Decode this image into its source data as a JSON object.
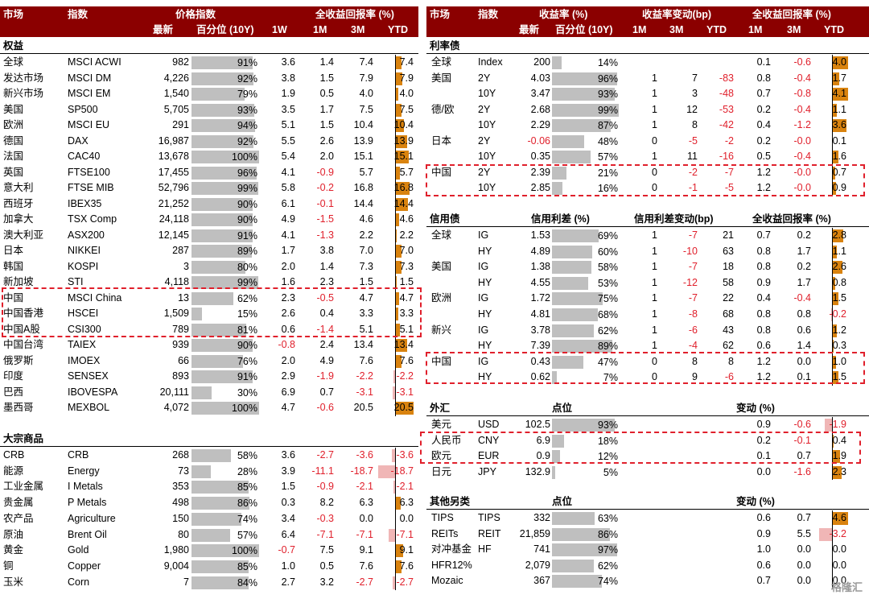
{
  "colors": {
    "header_bg": "#8b0000",
    "pct_fill": "#bfbfbf",
    "pos_bar": "#d9830f",
    "neg_bar": "#f0b6b6",
    "neg_text": "#e0202c"
  },
  "left": {
    "header": {
      "market": "市场",
      "index": "指数",
      "price_index": "价格指数",
      "total_return": "全收益回报率 (%)",
      "latest": "最新",
      "percentile": "百分位 (10Y)",
      "w1": "1W",
      "m1": "1M",
      "m3": "3M",
      "ytd": "YTD"
    },
    "equity": {
      "title": "权益",
      "rows": [
        {
          "market": "全球",
          "index": "MSCI ACWI",
          "latest": "982",
          "pct": 91,
          "pct_label": "91%",
          "w1": "3.6",
          "m1": "1.4",
          "m3": "7.4",
          "ytd": 7.4,
          "ytd_label": "7.4"
        },
        {
          "market": "发达市场",
          "index": "MSCI DM",
          "latest": "4,226",
          "pct": 92,
          "pct_label": "92%",
          "w1": "3.8",
          "m1": "1.5",
          "m3": "7.9",
          "ytd": 7.9,
          "ytd_label": "7.9"
        },
        {
          "market": "新兴市场",
          "index": "MSCI EM",
          "latest": "1,540",
          "pct": 79,
          "pct_label": "79%",
          "w1": "1.9",
          "m1": "0.5",
          "m3": "4.0",
          "ytd": 4.0,
          "ytd_label": "4.0"
        },
        {
          "market": "美国",
          "index": "SP500",
          "latest": "5,705",
          "pct": 93,
          "pct_label": "93%",
          "w1": "3.5",
          "m1": "1.7",
          "m3": "7.5",
          "ytd": 7.5,
          "ytd_label": "7.5"
        },
        {
          "market": "欧洲",
          "index": "MSCI EU",
          "latest": "291",
          "pct": 94,
          "pct_label": "94%",
          "w1": "5.1",
          "m1": "1.5",
          "m3": "10.4",
          "ytd": 10.4,
          "ytd_label": "10.4"
        },
        {
          "market": "德国",
          "index": "DAX",
          "latest": "16,987",
          "pct": 92,
          "pct_label": "92%",
          "w1": "5.5",
          "m1": "2.6",
          "m3": "13.9",
          "ytd": 13.9,
          "ytd_label": "13.9"
        },
        {
          "market": "法国",
          "index": "CAC40",
          "latest": "13,678",
          "pct": 100,
          "pct_label": "100%",
          "w1": "5.4",
          "m1": "2.0",
          "m3": "15.1",
          "ytd": 15.1,
          "ytd_label": "15.1"
        },
        {
          "market": "英国",
          "index": "FTSE100",
          "latest": "17,455",
          "pct": 96,
          "pct_label": "96%",
          "w1": "4.1",
          "m1": "-0.9",
          "m3": "5.7",
          "ytd": 5.7,
          "ytd_label": "5.7"
        },
        {
          "market": "意大利",
          "index": "FTSE MIB",
          "latest": "52,796",
          "pct": 99,
          "pct_label": "99%",
          "w1": "5.8",
          "m1": "-0.2",
          "m3": "16.8",
          "ytd": 16.8,
          "ytd_label": "16.8"
        },
        {
          "market": "西班牙",
          "index": "IBEX35",
          "latest": "21,252",
          "pct": 90,
          "pct_label": "90%",
          "w1": "6.1",
          "m1": "-0.1",
          "m3": "14.4",
          "ytd": 14.4,
          "ytd_label": "14.4"
        },
        {
          "market": "加拿大",
          "index": "TSX Comp",
          "latest": "24,118",
          "pct": 90,
          "pct_label": "90%",
          "w1": "4.9",
          "m1": "-1.5",
          "m3": "4.6",
          "ytd": 4.6,
          "ytd_label": "4.6"
        },
        {
          "market": "澳大利亚",
          "index": "ASX200",
          "latest": "12,145",
          "pct": 91,
          "pct_label": "91%",
          "w1": "4.1",
          "m1": "-1.3",
          "m3": "2.2",
          "ytd": 2.2,
          "ytd_label": "2.2"
        },
        {
          "market": "日本",
          "index": "NIKKEI",
          "latest": "287",
          "pct": 89,
          "pct_label": "89%",
          "w1": "1.7",
          "m1": "3.8",
          "m3": "7.0",
          "ytd": 7.0,
          "ytd_label": "7.0"
        },
        {
          "market": "韩国",
          "index": "KOSPI",
          "latest": "3",
          "pct": 80,
          "pct_label": "80%",
          "w1": "2.0",
          "m1": "1.4",
          "m3": "7.3",
          "ytd": 7.3,
          "ytd_label": "7.3"
        },
        {
          "market": "新加坡",
          "index": "STI",
          "latest": "4,118",
          "pct": 99,
          "pct_label": "99%",
          "w1": "1.6",
          "m1": "2.3",
          "m3": "1.5",
          "ytd": 1.5,
          "ytd_label": "1.5"
        },
        {
          "market": "中国",
          "index": "MSCI China",
          "latest": "13",
          "pct": 62,
          "pct_label": "62%",
          "w1": "2.3",
          "m1": "-0.5",
          "m3": "4.7",
          "ytd": 4.7,
          "ytd_label": "4.7"
        },
        {
          "market": "中国香港",
          "index": "HSCEI",
          "latest": "1,509",
          "pct": 15,
          "pct_label": "15%",
          "w1": "2.6",
          "m1": "0.4",
          "m3": "3.3",
          "ytd": 3.3,
          "ytd_label": "3.3"
        },
        {
          "market": "中国A股",
          "index": "CSI300",
          "latest": "789",
          "pct": 81,
          "pct_label": "81%",
          "w1": "0.6",
          "m1": "-1.4",
          "m3": "5.1",
          "ytd": 5.1,
          "ytd_label": "5.1"
        },
        {
          "market": "中国台湾",
          "index": "TAIEX",
          "latest": "939",
          "pct": 90,
          "pct_label": "90%",
          "w1": "-0.8",
          "m1": "2.4",
          "m3": "13.4",
          "ytd": 13.4,
          "ytd_label": "13.4"
        },
        {
          "market": "俄罗斯",
          "index": "IMOEX",
          "latest": "66",
          "pct": 76,
          "pct_label": "76%",
          "w1": "2.0",
          "m1": "4.9",
          "m3": "7.6",
          "ytd": 7.6,
          "ytd_label": "7.6"
        },
        {
          "market": "印度",
          "index": "SENSEX",
          "latest": "893",
          "pct": 91,
          "pct_label": "91%",
          "w1": "2.9",
          "m1": "-1.9",
          "m3": "-2.2",
          "ytd": -2.2,
          "ytd_label": "-2.2"
        },
        {
          "market": "巴西",
          "index": "IBOVESPA",
          "latest": "20,111",
          "pct": 30,
          "pct_label": "30%",
          "w1": "6.9",
          "m1": "0.7",
          "m3": "-3.1",
          "ytd": -3.1,
          "ytd_label": "-3.1"
        },
        {
          "market": "墨西哥",
          "index": "MEXBOL",
          "latest": "4,072",
          "pct": 100,
          "pct_label": "100%",
          "w1": "4.7",
          "m1": "-0.6",
          "m3": "20.5",
          "ytd": 20.5,
          "ytd_label": "20.5"
        }
      ]
    },
    "commodity": {
      "title": "大宗商品",
      "rows": [
        {
          "market": "CRB",
          "index": "CRB",
          "latest": "268",
          "pct": 58,
          "pct_label": "58%",
          "w1": "3.6",
          "m1": "-2.7",
          "m3": "-3.6",
          "ytd": -3.6,
          "ytd_label": "-3.6"
        },
        {
          "market": "能源",
          "index": "Energy",
          "latest": "73",
          "pct": 28,
          "pct_label": "28%",
          "w1": "3.9",
          "m1": "-11.1",
          "m3": "-18.7",
          "ytd": -18.7,
          "ytd_label": "-18.7"
        },
        {
          "market": "工业金属",
          "index": "I Metals",
          "latest": "353",
          "pct": 85,
          "pct_label": "85%",
          "w1": "1.5",
          "m1": "-0.9",
          "m3": "-2.1",
          "ytd": -2.1,
          "ytd_label": "-2.1"
        },
        {
          "market": "贵金属",
          "index": "P Metals",
          "latest": "498",
          "pct": 86,
          "pct_label": "86%",
          "w1": "0.3",
          "m1": "8.2",
          "m3": "6.3",
          "ytd": 6.3,
          "ytd_label": "6.3"
        },
        {
          "market": "农产品",
          "index": "Agriculture",
          "latest": "150",
          "pct": 74,
          "pct_label": "74%",
          "w1": "3.4",
          "m1": "-0.3",
          "m3": "0.0",
          "ytd": 0.0,
          "ytd_label": "0.0"
        },
        {
          "market": "原油",
          "index": "Brent Oil",
          "latest": "80",
          "pct": 57,
          "pct_label": "57%",
          "w1": "6.4",
          "m1": "-7.1",
          "m3": "-7.1",
          "ytd": -7.1,
          "ytd_label": "-7.1"
        },
        {
          "market": "黄金",
          "index": "Gold",
          "latest": "1,980",
          "pct": 100,
          "pct_label": "100%",
          "w1": "-0.7",
          "m1": "7.5",
          "m3": "9.1",
          "ytd": 9.1,
          "ytd_label": "9.1"
        },
        {
          "market": "铜",
          "index": "Copper",
          "latest": "9,004",
          "pct": 85,
          "pct_label": "85%",
          "w1": "1.0",
          "m1": "0.5",
          "m3": "7.6",
          "ytd": 7.6,
          "ytd_label": "7.6"
        },
        {
          "market": "玉米",
          "index": "Corn",
          "latest": "7",
          "pct": 84,
          "pct_label": "84%",
          "w1": "2.7",
          "m1": "3.2",
          "m3": "-2.7",
          "ytd": -2.7,
          "ytd_label": "-2.7"
        }
      ]
    }
  },
  "right": {
    "header": {
      "market": "市场",
      "index": "指数",
      "yield": "收益率 (%)",
      "yield_chg": "收益率变动(bp)",
      "total_return": "全收益回报率 (%)",
      "latest": "最新",
      "percentile": "百分位 (10Y)",
      "m1": "1M",
      "m3": "3M",
      "ytd": "YTD",
      "r_m1": "1M",
      "r_m3": "3M",
      "r_ytd": "YTD"
    },
    "rates": {
      "title": "利率债",
      "rows": [
        {
          "market": "全球",
          "index": "Index",
          "latest": "200",
          "pct": 14,
          "pct_label": "14%",
          "c1": "",
          "c2": "",
          "c3": "",
          "m1": "0.1",
          "m3": "-0.6",
          "ytd": 4.0,
          "ytd_label": "4.0"
        },
        {
          "market": "美国",
          "index": "2Y",
          "latest": "4.03",
          "pct": 96,
          "pct_label": "96%",
          "c1": "1",
          "c2": "7",
          "c3": "-83",
          "m1": "0.8",
          "m3": "-0.4",
          "ytd": 1.7,
          "ytd_label": "1.7"
        },
        {
          "market": "",
          "index": "10Y",
          "latest": "3.47",
          "pct": 93,
          "pct_label": "93%",
          "c1": "1",
          "c2": "3",
          "c3": "-48",
          "m1": "0.7",
          "m3": "-0.8",
          "ytd": 4.1,
          "ytd_label": "4.1"
        },
        {
          "market": "德/欧",
          "index": "2Y",
          "latest": "2.68",
          "pct": 99,
          "pct_label": "99%",
          "c1": "1",
          "c2": "12",
          "c3": "-53",
          "m1": "0.2",
          "m3": "-0.4",
          "ytd": 1.1,
          "ytd_label": "1.1"
        },
        {
          "market": "",
          "index": "10Y",
          "latest": "2.29",
          "pct": 87,
          "pct_label": "87%",
          "c1": "1",
          "c2": "8",
          "c3": "-42",
          "m1": "0.4",
          "m3": "-1.2",
          "ytd": 3.6,
          "ytd_label": "3.6"
        },
        {
          "market": "日本",
          "index": "2Y",
          "latest": "-0.06",
          "pct": 48,
          "pct_label": "48%",
          "c1": "0",
          "c2": "-5",
          "c3": "-2",
          "m1": "0.2",
          "m3": "-0.0",
          "ytd": 0.1,
          "ytd_label": "0.1"
        },
        {
          "market": "",
          "index": "10Y",
          "latest": "0.35",
          "pct": 57,
          "pct_label": "57%",
          "c1": "1",
          "c2": "11",
          "c3": "-16",
          "m1": "0.5",
          "m3": "-0.4",
          "ytd": 1.6,
          "ytd_label": "1.6"
        },
        {
          "market": "中国",
          "index": "2Y",
          "latest": "2.39",
          "pct": 21,
          "pct_label": "21%",
          "c1": "0",
          "c2": "-2",
          "c3": "-7",
          "m1": "1.2",
          "m3": "-0.0",
          "ytd": 0.7,
          "ytd_label": "0.7"
        },
        {
          "market": "",
          "index": "10Y",
          "latest": "2.85",
          "pct": 16,
          "pct_label": "16%",
          "c1": "0",
          "c2": "-1",
          "c3": "-5",
          "m1": "1.2",
          "m3": "-0.0",
          "ytd": 0.9,
          "ytd_label": "0.9"
        }
      ]
    },
    "credit": {
      "title": "信用债",
      "spread": "信用利差 (%)",
      "spread_chg": "信用利差变动(bp)",
      "total_return": "全收益回报率 (%)",
      "rows": [
        {
          "market": "全球",
          "index": "IG",
          "latest": "1.53",
          "pct": 69,
          "pct_label": "69%",
          "c1": "1",
          "c2": "-7",
          "c3": "21",
          "m1": "0.7",
          "m3": "0.2",
          "ytd": 2.8,
          "ytd_label": "2.8"
        },
        {
          "market": "",
          "index": "HY",
          "latest": "4.89",
          "pct": 60,
          "pct_label": "60%",
          "c1": "1",
          "c2": "-10",
          "c3": "63",
          "m1": "0.8",
          "m3": "1.7",
          "ytd": 1.1,
          "ytd_label": "1.1"
        },
        {
          "market": "美国",
          "index": "IG",
          "latest": "1.38",
          "pct": 58,
          "pct_label": "58%",
          "c1": "1",
          "c2": "-7",
          "c3": "18",
          "m1": "0.8",
          "m3": "0.2",
          "ytd": 2.6,
          "ytd_label": "2.6"
        },
        {
          "market": "",
          "index": "HY",
          "latest": "4.55",
          "pct": 53,
          "pct_label": "53%",
          "c1": "1",
          "c2": "-12",
          "c3": "58",
          "m1": "0.9",
          "m3": "1.7",
          "ytd": 0.8,
          "ytd_label": "0.8"
        },
        {
          "market": "欧洲",
          "index": "IG",
          "latest": "1.72",
          "pct": 75,
          "pct_label": "75%",
          "c1": "1",
          "c2": "-7",
          "c3": "22",
          "m1": "0.4",
          "m3": "-0.4",
          "ytd": 1.5,
          "ytd_label": "1.5"
        },
        {
          "market": "",
          "index": "HY",
          "latest": "4.81",
          "pct": 68,
          "pct_label": "68%",
          "c1": "1",
          "c2": "-8",
          "c3": "68",
          "m1": "0.8",
          "m3": "0.8",
          "ytd": -0.2,
          "ytd_label": "-0.2"
        },
        {
          "market": "新兴",
          "index": "IG",
          "latest": "3.78",
          "pct": 62,
          "pct_label": "62%",
          "c1": "1",
          "c2": "-6",
          "c3": "43",
          "m1": "0.8",
          "m3": "0.6",
          "ytd": 1.2,
          "ytd_label": "1.2"
        },
        {
          "market": "",
          "index": "HY",
          "latest": "7.39",
          "pct": 89,
          "pct_label": "89%",
          "c1": "1",
          "c2": "-4",
          "c3": "62",
          "m1": "0.6",
          "m3": "1.4",
          "ytd": 0.3,
          "ytd_label": "0.3"
        },
        {
          "market": "中国",
          "index": "IG",
          "latest": "0.43",
          "pct": 47,
          "pct_label": "47%",
          "c1": "0",
          "c2": "8",
          "c3": "8",
          "m1": "1.2",
          "m3": "0.0",
          "ytd": 1.0,
          "ytd_label": "1.0"
        },
        {
          "market": "",
          "index": "HY",
          "latest": "0.62",
          "pct": 7,
          "pct_label": "7%",
          "c1": "0",
          "c2": "9",
          "c3": "-6",
          "m1": "1.2",
          "m3": "0.1",
          "ytd": 1.5,
          "ytd_label": "1.5"
        }
      ]
    },
    "fx": {
      "title": "外汇",
      "points": "点位",
      "change": "变动 (%)",
      "rows": [
        {
          "market": "美元",
          "index": "USD",
          "latest": "102.5",
          "pct": 93,
          "pct_label": "93%",
          "m1": "0.9",
          "m3": "-0.6",
          "ytd": -1.9,
          "ytd_label": "-1.9"
        },
        {
          "market": "人民币",
          "index": "CNY",
          "latest": "6.9",
          "pct": 18,
          "pct_label": "18%",
          "m1": "0.2",
          "m3": "-0.1",
          "ytd": 0.4,
          "ytd_label": "0.4"
        },
        {
          "market": "欧元",
          "index": "EUR",
          "latest": "0.9",
          "pct": 12,
          "pct_label": "12%",
          "m1": "0.1",
          "m3": "0.7",
          "ytd": 1.9,
          "ytd_label": "1.9"
        },
        {
          "market": "日元",
          "index": "JPY",
          "latest": "132.9",
          "pct": 5,
          "pct_label": "5%",
          "m1": "0.0",
          "m3": "-1.6",
          "ytd": 2.3,
          "ytd_label": "2.3"
        }
      ]
    },
    "alt": {
      "title": "其他另类",
      "points": "点位",
      "change": "变动 (%)",
      "rows": [
        {
          "market": "TIPS",
          "index": "TIPS",
          "latest": "332",
          "pct": 63,
          "pct_label": "63%",
          "m1": "0.6",
          "m3": "0.7",
          "ytd": 4.6,
          "ytd_label": "4.6"
        },
        {
          "market": "REITs",
          "index": "REIT",
          "latest": "21,859",
          "pct": 86,
          "pct_label": "86%",
          "m1": "0.9",
          "m3": "5.5",
          "ytd": -3.2,
          "ytd_label": "-3.2"
        },
        {
          "market": "对冲基金",
          "index": "HF",
          "latest": "741",
          "pct": 97,
          "pct_label": "97%",
          "m1": "1.0",
          "m3": "0.0",
          "ytd": 0.0,
          "ytd_label": "0.0"
        },
        {
          "market": "HFR12%",
          "index": "",
          "latest": "2,079",
          "pct": 62,
          "pct_label": "62%",
          "m1": "0.6",
          "m3": "0.0",
          "ytd": 0.0,
          "ytd_label": "0.0"
        },
        {
          "market": "Mozaic",
          "index": "",
          "latest": "367",
          "pct": 74,
          "pct_label": "74%",
          "m1": "0.7",
          "m3": "0.0",
          "ytd": 0.0,
          "ytd_label": "0.0"
        }
      ]
    }
  },
  "watermark": "格隆汇"
}
